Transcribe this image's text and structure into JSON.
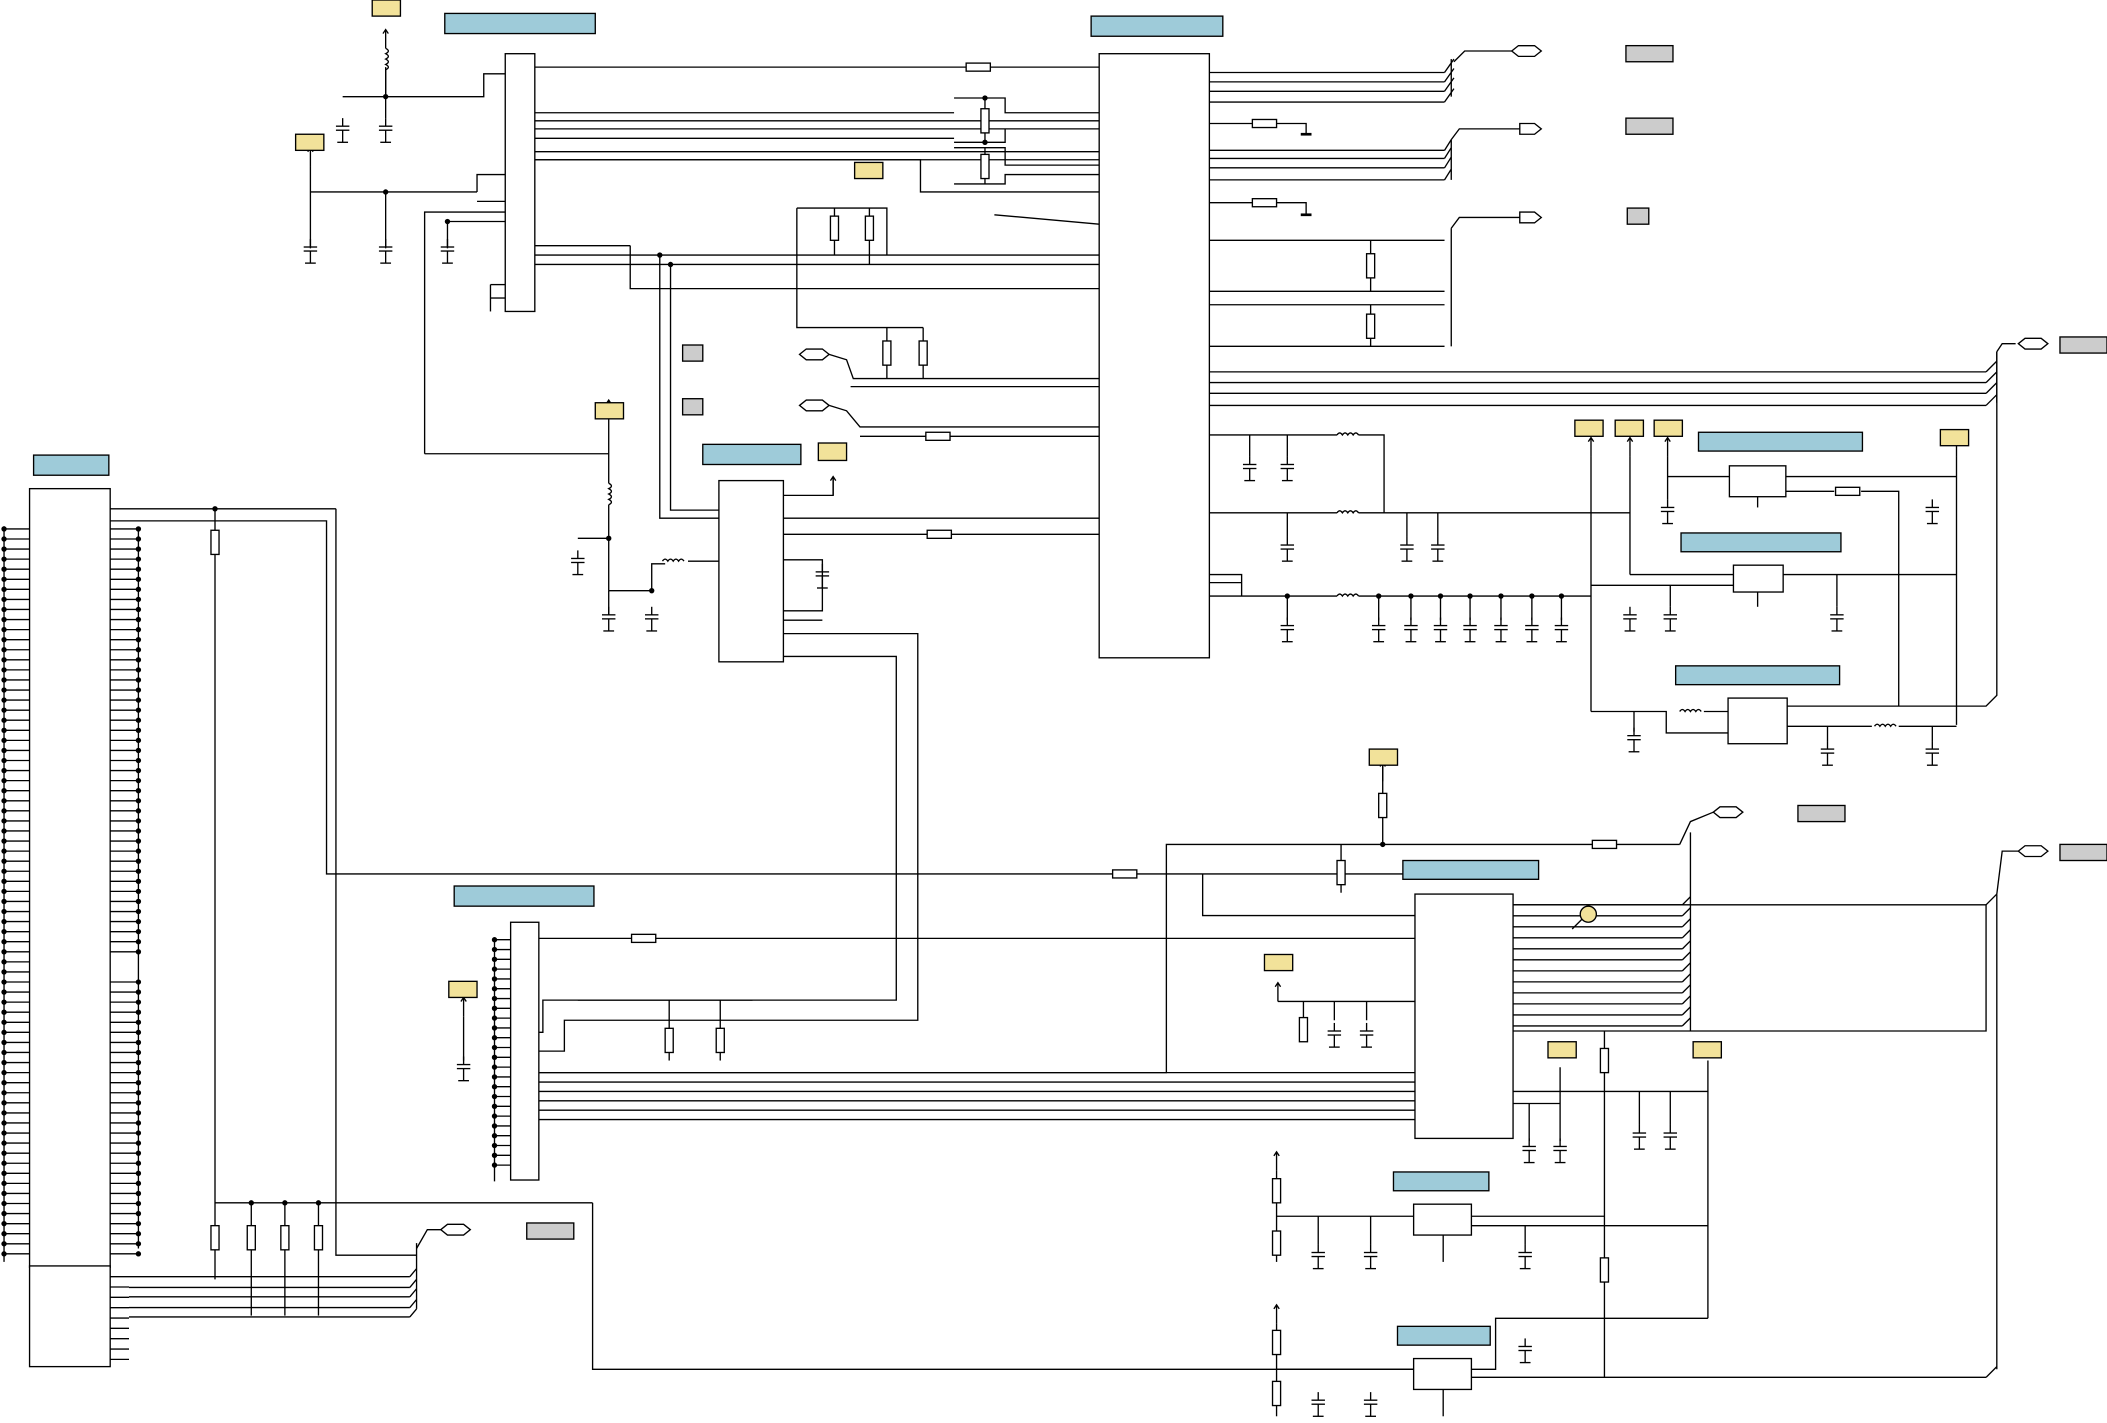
{
  "colors": {
    "block_label": "#9ecbd9",
    "power_label": "#f2e29a",
    "port_label": "#cccccc",
    "wire": "#000000",
    "probe": "#f2e29a"
  }
}
